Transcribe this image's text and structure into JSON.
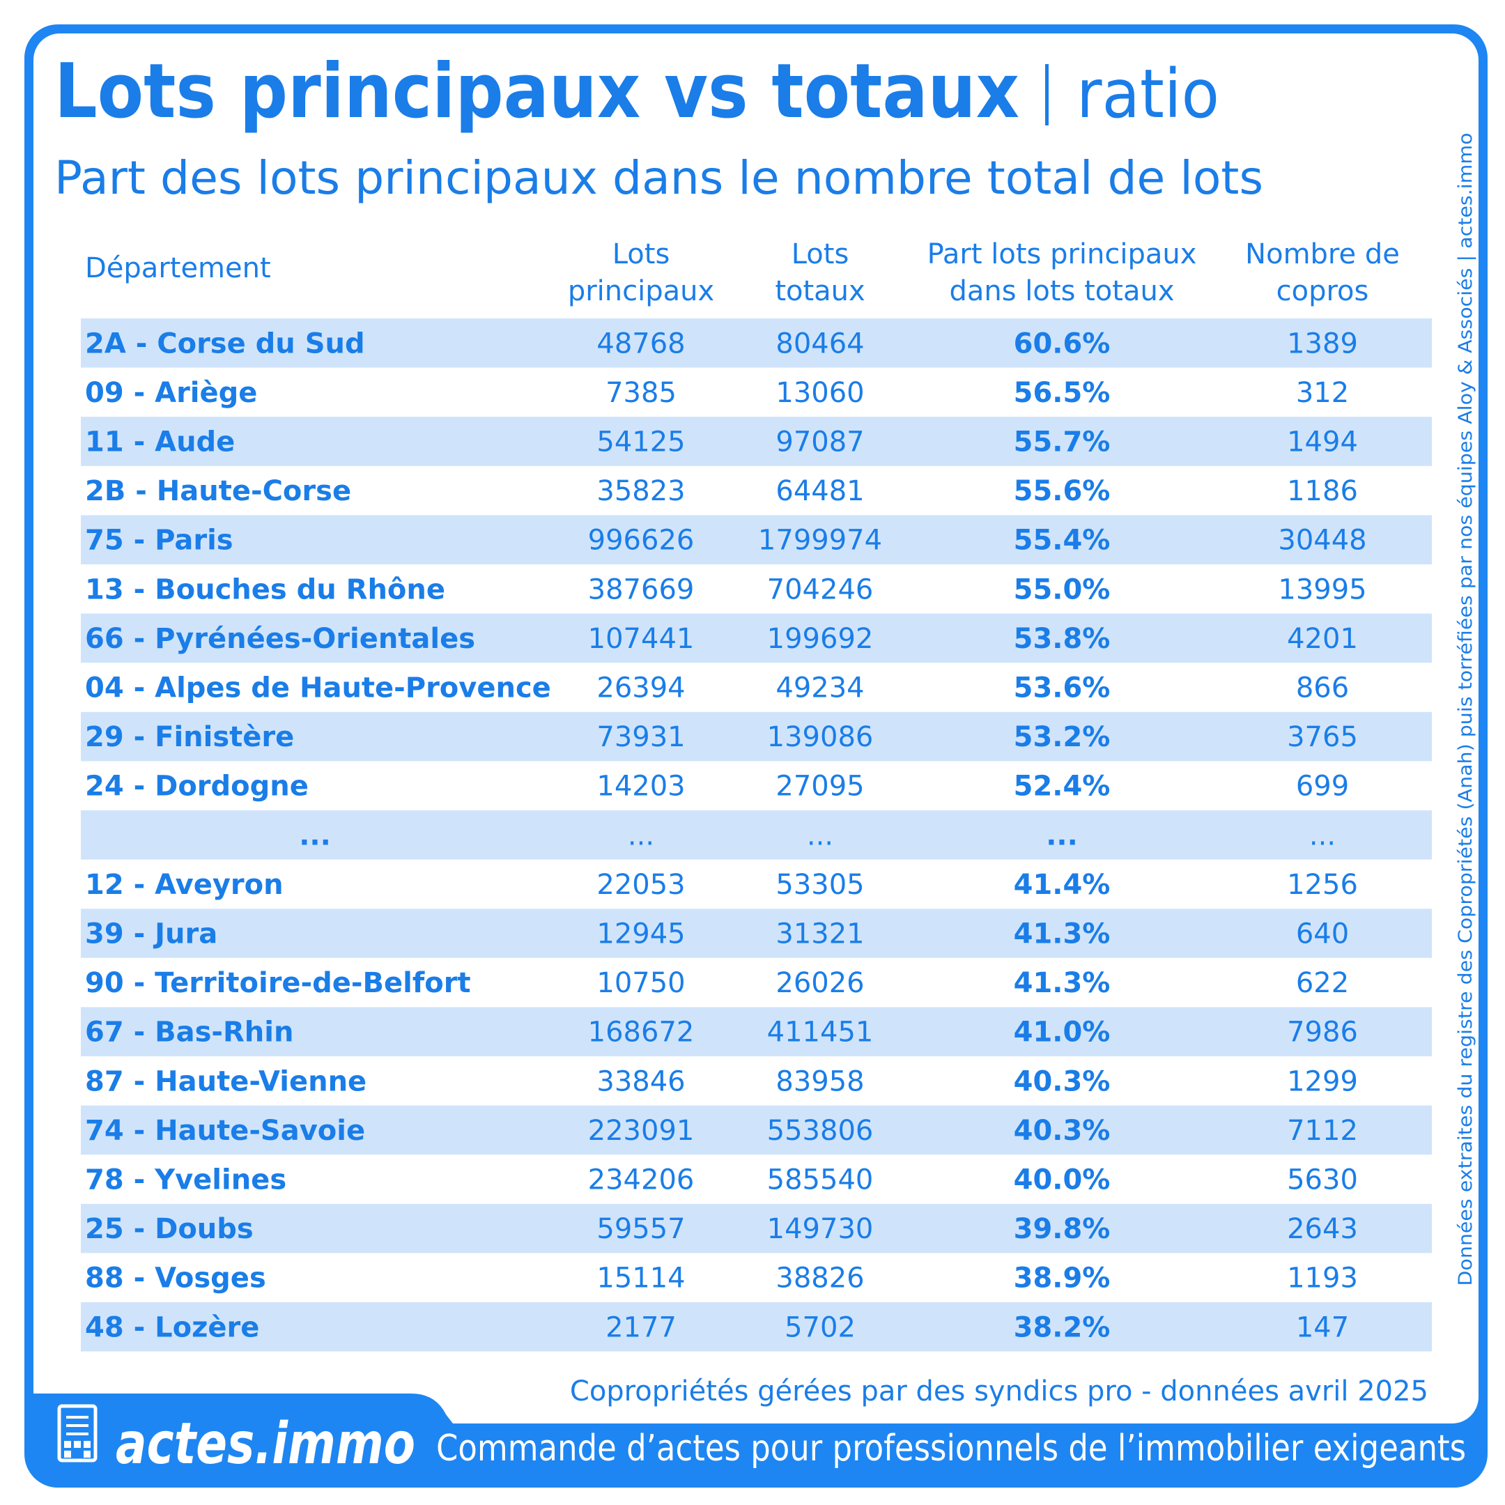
{
  "header": {
    "title": "Lots principaux vs totaux",
    "title_suffix": "ratio",
    "subtitle": "Part des lots principaux dans le nombre total de lots"
  },
  "table": {
    "columns": [
      [
        "Département"
      ],
      [
        "Lots",
        "principaux"
      ],
      [
        "Lots",
        "totaux"
      ],
      [
        "Part lots principaux",
        "dans lots totaux"
      ],
      [
        "Nombre de",
        "copros"
      ]
    ],
    "rows": [
      [
        "2A - Corse du Sud",
        "48768",
        "80464",
        "60.6%",
        "1389"
      ],
      [
        "09 - Ariège",
        "7385",
        "13060",
        "56.5%",
        "312"
      ],
      [
        "11 - Aude",
        "54125",
        "97087",
        "55.7%",
        "1494"
      ],
      [
        "2B - Haute-Corse",
        "35823",
        "64481",
        "55.6%",
        "1186"
      ],
      [
        "75 - Paris",
        "996626",
        "1799974",
        "55.4%",
        "30448"
      ],
      [
        "13 - Bouches du Rhône",
        "387669",
        "704246",
        "55.0%",
        "13995"
      ],
      [
        "66 - Pyrénées-Orientales",
        "107441",
        "199692",
        "53.8%",
        "4201"
      ],
      [
        "04 - Alpes de Haute-Provence",
        "26394",
        "49234",
        "53.6%",
        "866"
      ],
      [
        "29 - Finistère",
        "73931",
        "139086",
        "53.2%",
        "3765"
      ],
      [
        "24 - Dordogne",
        "14203",
        "27095",
        "52.4%",
        "699"
      ],
      [
        "...",
        "...",
        "...",
        "...",
        "..."
      ],
      [
        "12 - Aveyron",
        "22053",
        "53305",
        "41.4%",
        "1256"
      ],
      [
        "39 - Jura",
        "12945",
        "31321",
        "41.3%",
        "640"
      ],
      [
        "90 - Territoire-de-Belfort",
        "10750",
        "26026",
        "41.3%",
        "622"
      ],
      [
        "67 - Bas-Rhin",
        "168672",
        "411451",
        "41.0%",
        "7986"
      ],
      [
        "87 - Haute-Vienne",
        "33846",
        "83958",
        "40.3%",
        "1299"
      ],
      [
        "74 - Haute-Savoie",
        "223091",
        "553806",
        "40.3%",
        "7112"
      ],
      [
        "78 - Yvelines",
        "234206",
        "585540",
        "40.0%",
        "5630"
      ],
      [
        "25 - Doubs",
        "59557",
        "149730",
        "39.8%",
        "2643"
      ],
      [
        "88 - Vosges",
        "15114",
        "38826",
        "38.9%",
        "1193"
      ],
      [
        "48 - Lozère",
        "2177",
        "5702",
        "38.2%",
        "147"
      ]
    ]
  },
  "footer": {
    "note": "Copropriétés gérées par des syndics pro - données avril 2025",
    "brand": "actes.immo",
    "tagline": "Commande d’actes pour professionnels de l’immobilier exigeants"
  },
  "side_note": "Données extraites du registre des Copropriétés (Anah) puis torréfiées par nos équipes Aloy & Associés | actes.immo"
}
